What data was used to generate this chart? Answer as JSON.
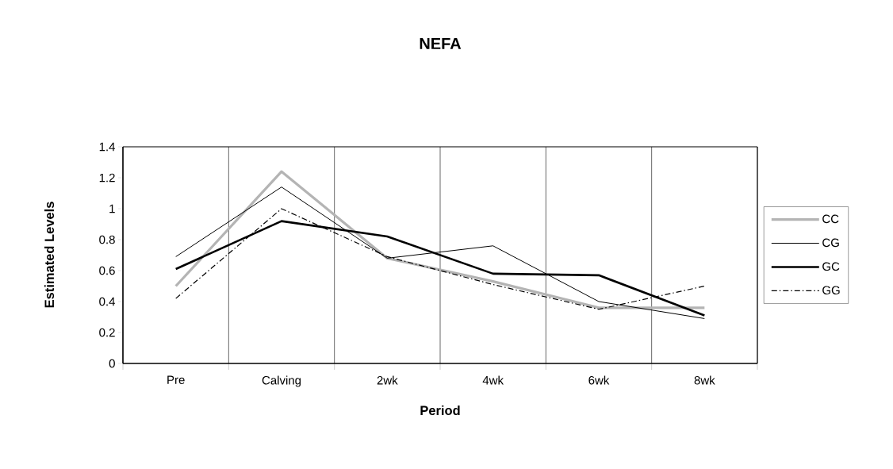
{
  "chart_data": {
    "type": "line",
    "title": "NEFA",
    "xlabel": "Period",
    "ylabel": "Estimated Levels",
    "categories": [
      "Pre",
      "Calving",
      "2wk",
      "4wk",
      "6wk",
      "8wk"
    ],
    "series": [
      {
        "name": "CC",
        "color": "#b4b4b4",
        "values": [
          0.5,
          1.24,
          0.68,
          0.53,
          0.36,
          0.36
        ],
        "line_style": "solid"
      },
      {
        "name": "CG",
        "color": "#000000",
        "values": [
          0.69,
          1.14,
          0.68,
          0.76,
          0.4,
          0.29
        ],
        "line_style": "solid"
      },
      {
        "name": "GC",
        "color": "#000000",
        "values": [
          0.61,
          0.92,
          0.82,
          0.58,
          0.57,
          0.31
        ],
        "line_style": "solid"
      },
      {
        "name": "GG",
        "color": "#000000",
        "values": [
          0.42,
          1.0,
          0.69,
          0.51,
          0.35,
          0.5
        ],
        "line_style": "dashed"
      }
    ],
    "ylim": [
      0,
      1.4
    ],
    "yticks": [
      0,
      0.2,
      0.4,
      0.6,
      0.8,
      1,
      1.2,
      1.4
    ],
    "grid": "x",
    "legend": "right",
    "marker": "none"
  }
}
